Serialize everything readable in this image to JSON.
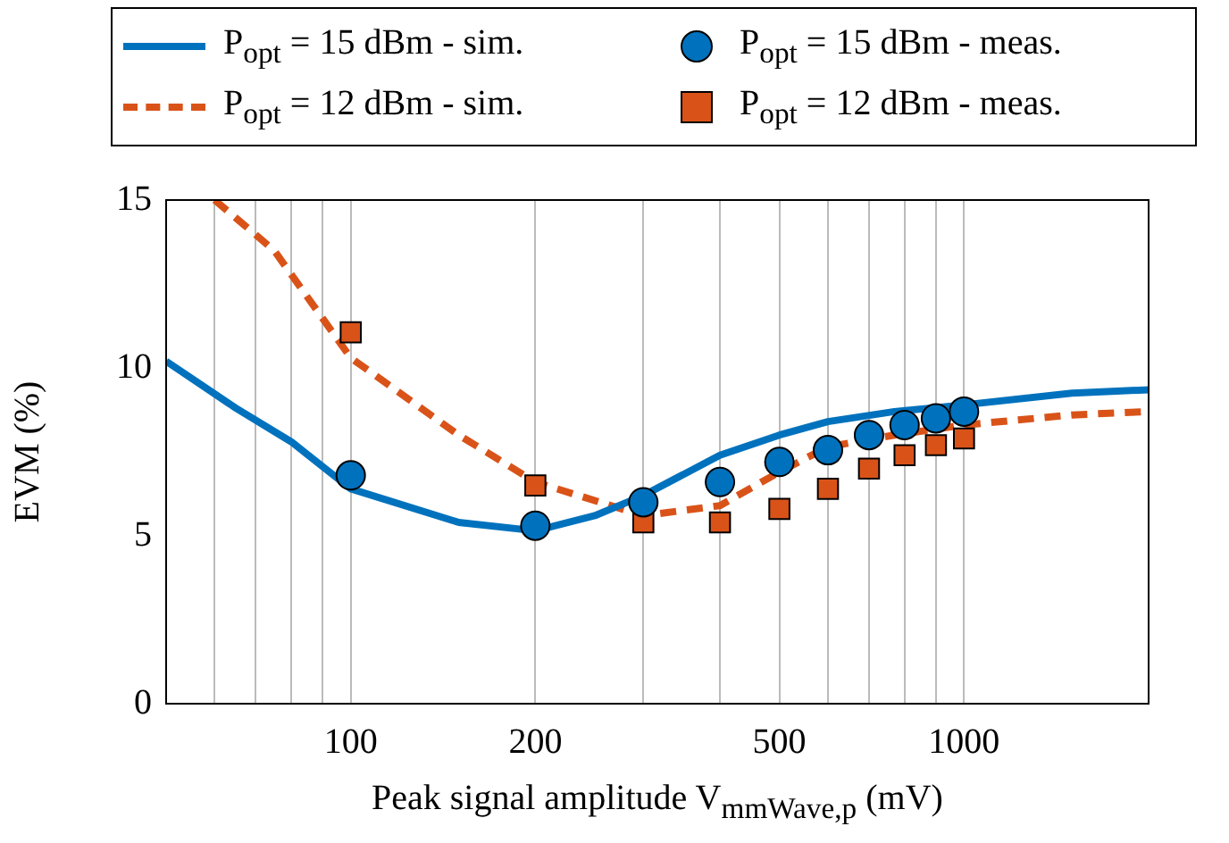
{
  "chart_data": {
    "type": "line",
    "xlabel": "Peak signal amplitude V$_{mmWave,p}$ (mV)",
    "ylabel": "EVM (%)",
    "log": "x",
    "grid": "x",
    "legend": "top",
    "xlim": [
      50,
      2000
    ],
    "xticks": [
      {
        "value": 60,
        "label": null
      },
      {
        "value": 70,
        "label": null
      },
      {
        "value": 80,
        "label": null
      },
      {
        "value": 90,
        "label": null
      },
      100,
      200,
      {
        "value": 300,
        "label": null
      },
      {
        "value": 400,
        "label": null
      },
      500,
      {
        "value": 600,
        "label": null
      },
      {
        "value": 700,
        "label": null
      },
      {
        "value": 800,
        "label": null
      },
      {
        "value": 900,
        "label": null
      },
      1000
    ],
    "ylim": [
      0,
      15
    ],
    "yticks": [
      0,
      5,
      10,
      15
    ],
    "series": [
      {
        "name": "P$_{opt}$ = 15 dBm - sim.",
        "color": "#0072bd",
        "marker": "none",
        "line_style": "solid",
        "x": [
          50,
          65,
          80,
          100,
          150,
          200,
          250,
          300,
          400,
          500,
          600,
          770,
          1000,
          1500,
          2000
        ],
        "values": [
          10.2,
          8.8,
          7.8,
          6.4,
          5.4,
          5.15,
          5.6,
          6.2,
          7.4,
          8.0,
          8.4,
          8.7,
          8.9,
          9.25,
          9.35
        ]
      },
      {
        "name": "P$_{opt}$ = 15 dBm - meas.",
        "type": "scatter",
        "color": "#0072bd",
        "marker": "circle",
        "x": [
          100,
          200,
          300,
          400,
          500,
          600,
          700,
          800,
          900,
          1000
        ],
        "values": [
          6.8,
          5.3,
          6.0,
          6.6,
          7.2,
          7.55,
          8.0,
          8.3,
          8.5,
          8.7
        ]
      },
      {
        "name": "P$_{opt}$ = 12 dBm - sim.",
        "color": "#d95319",
        "marker": "none",
        "line_style": "dashed",
        "x": [
          60,
          75,
          100,
          150,
          200,
          300,
          400,
          500,
          600,
          770,
          1000,
          1500,
          2000
        ],
        "values": [
          15,
          13.5,
          10.3,
          8.0,
          6.6,
          5.6,
          5.9,
          6.9,
          7.65,
          8.0,
          8.3,
          8.6,
          8.7
        ]
      },
      {
        "name": "P$_{opt}$ = 12 dBm - meas.",
        "type": "scatter",
        "color": "#d95319",
        "marker": "square",
        "x": [
          100,
          200,
          300,
          400,
          500,
          600,
          700,
          800,
          900,
          1000
        ],
        "values": [
          11.06,
          6.5,
          5.4,
          5.4,
          5.8,
          6.4,
          7.0,
          7.4,
          7.7,
          7.9
        ]
      }
    ]
  }
}
